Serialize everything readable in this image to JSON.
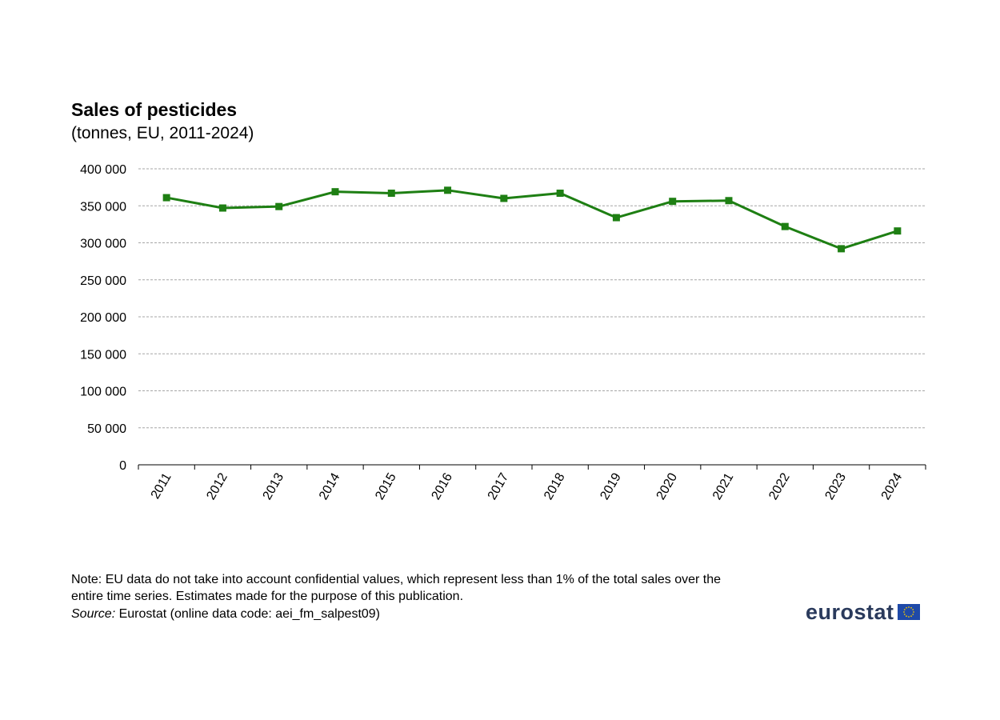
{
  "chart_data": {
    "type": "line",
    "title": "Sales of pesticides",
    "subtitle": "(tonnes, EU, 2011-2024)",
    "categories": [
      "2011",
      "2012",
      "2013",
      "2014",
      "2015",
      "2016",
      "2017",
      "2018",
      "2019",
      "2020",
      "2021",
      "2022",
      "2023",
      "2024"
    ],
    "series": [
      {
        "values": [
          361000,
          347000,
          349000,
          369000,
          367000,
          371000,
          360000,
          367000,
          334000,
          356000,
          357000,
          322000,
          292000,
          316000
        ]
      }
    ],
    "ylim": [
      0,
      400000
    ],
    "yticks": [
      0,
      50000,
      100000,
      150000,
      200000,
      250000,
      300000,
      350000,
      400000
    ],
    "ytick_labels": [
      "0",
      "50 000",
      "100 000",
      "150 000",
      "200 000",
      "250 000",
      "300 000",
      "350 000",
      "400 000"
    ],
    "grid": true,
    "line_color": "#1e7f13",
    "grid_color": "#a6a6a6"
  },
  "footer": {
    "note": "Note: EU data do not take into account confidential values, which represent less than 1% of the total sales over the entire time series. Estimates made for the purpose of this publication.",
    "source_label": "Source:",
    "source_text": " Eurostat (online data code: aei_fm_salpest09)"
  },
  "logo": {
    "word": "eurostat",
    "brand_color": "#2a3a5c",
    "flag_color": "#1f4aa8",
    "star_color": "#f2c500"
  }
}
